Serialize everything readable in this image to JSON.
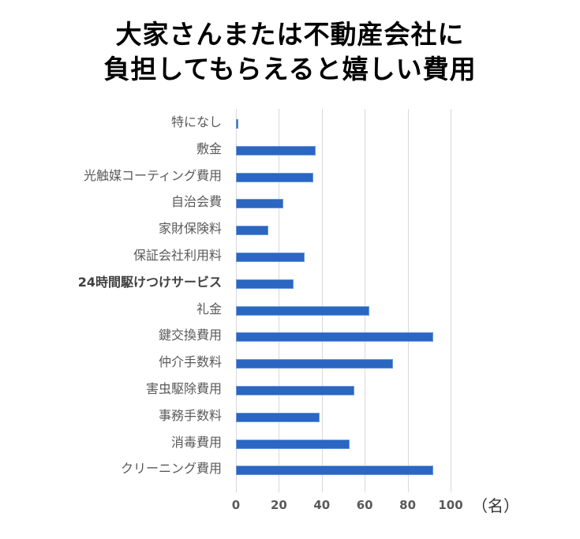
{
  "chart_data": {
    "type": "bar",
    "orientation": "horizontal",
    "title": "大家さんまたは不動産会社に負担してもらえると嬉しい費用",
    "title_lines": [
      "大家さんまたは不動産会社に",
      "負担してもらえると嬉しい費用"
    ],
    "xlabel": "（名）",
    "ylabel": "",
    "xlim": [
      0,
      100
    ],
    "x_ticks": [
      "0",
      "20",
      "40",
      "60",
      "80",
      "100"
    ],
    "grid": true,
    "legend": null,
    "categories": [
      "特になし",
      "敷金",
      "光触媒コーティング費用",
      "自治会費",
      "家財保険料",
      "保証会社利用料",
      "24時間駆けつけサービス",
      "礼金",
      "鍵交換費用",
      "仲介手数料",
      "害虫駆除費用",
      "事務手数料",
      "消毒費用",
      "クリーニング費用"
    ],
    "values": [
      1,
      37,
      36,
      22,
      15,
      32,
      27,
      62,
      92,
      73,
      55,
      39,
      53,
      92
    ],
    "bar_color": "#2a66c2"
  }
}
